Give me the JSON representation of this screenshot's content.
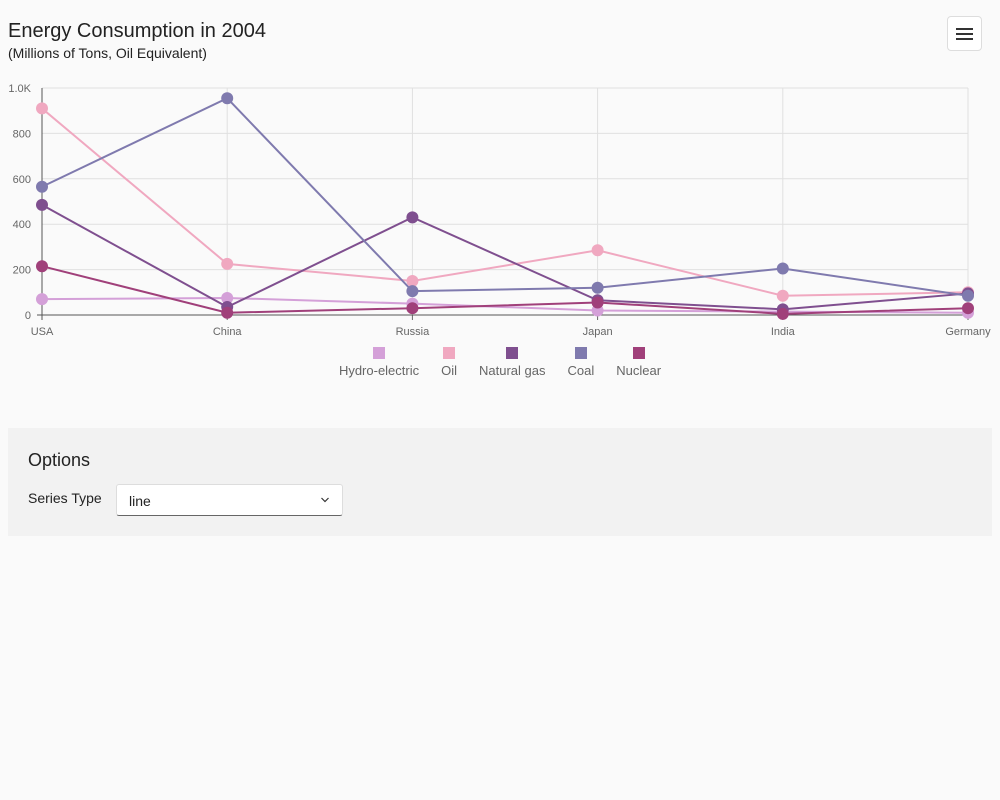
{
  "chart_data": {
    "type": "line",
    "title": "Energy Consumption in 2004",
    "subtitle": "(Millions of Tons, Oil Equivalent)",
    "categories": [
      "USA",
      "China",
      "Russia",
      "Japan",
      "India",
      "Germany"
    ],
    "ylim": [
      0,
      1000
    ],
    "yticks": [
      {
        "value": 0,
        "label": "0"
      },
      {
        "value": 200,
        "label": "200"
      },
      {
        "value": 400,
        "label": "400"
      },
      {
        "value": 600,
        "label": "600"
      },
      {
        "value": 800,
        "label": "800"
      },
      {
        "value": 1000,
        "label": "1.0K"
      }
    ],
    "grid": true,
    "legend_position": "bottom",
    "series": [
      {
        "name": "Hydro-electric",
        "color": "#d4a0d8",
        "values": [
          70,
          75,
          50,
          20,
          15,
          10
        ]
      },
      {
        "name": "Oil",
        "color": "#f0a8c0",
        "values": [
          910,
          225,
          150,
          285,
          85,
          100
        ]
      },
      {
        "name": "Natural gas",
        "color": "#7f4f8f",
        "values": [
          485,
          35,
          430,
          65,
          25,
          95
        ]
      },
      {
        "name": "Coal",
        "color": "#7f7aae",
        "values": [
          565,
          955,
          105,
          120,
          205,
          85
        ]
      },
      {
        "name": "Nuclear",
        "color": "#a0407a",
        "values": [
          215,
          10,
          30,
          55,
          5,
          30
        ]
      }
    ]
  },
  "menu": {
    "icon": "hamburger-icon"
  },
  "options": {
    "title": "Options",
    "series_type_label": "Series Type",
    "series_type_value": "line"
  }
}
